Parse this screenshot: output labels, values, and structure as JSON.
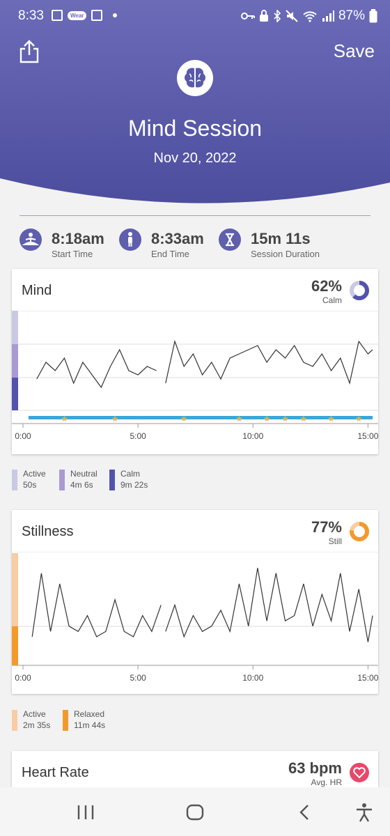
{
  "status_bar": {
    "time": "8:33",
    "wear_badge": "Wear",
    "battery": "87%",
    "icons": [
      "image-icon",
      "wear-os-icon",
      "news-icon",
      "dot-icon",
      "key-icon",
      "lock-icon",
      "bluetooth-icon",
      "mute-icon",
      "wifi-icon",
      "signal-icon",
      "battery-icon"
    ]
  },
  "header": {
    "save_label": "Save",
    "title": "Mind Session",
    "date": "Nov 20, 2022",
    "gradient_top": "#6b6bb8",
    "gradient_bottom": "#4f4fa0"
  },
  "stats": [
    {
      "value": "8:18am",
      "label": "Start Time",
      "icon": "meditation-icon"
    },
    {
      "value": "8:33am",
      "label": "End Time",
      "icon": "person-icon"
    },
    {
      "value": "15m 11s",
      "label": "Session Duration",
      "icon": "hourglass-icon"
    }
  ],
  "mind": {
    "title": "Mind",
    "percent": "62%",
    "percent_value": 62,
    "sub": "Calm",
    "legend": [
      {
        "name": "Active",
        "value": "50s",
        "color": "#c9c9e6"
      },
      {
        "name": "Neutral",
        "value": "4m 6s",
        "color": "#a99ad2"
      },
      {
        "name": "Calm",
        "value": "9m 22s",
        "color": "#5353ad"
      }
    ]
  },
  "stillness": {
    "title": "Stillness",
    "percent": "77%",
    "percent_value": 77,
    "sub": "Still",
    "legend": [
      {
        "name": "Active",
        "value": "2m 35s",
        "color": "#f8cca4"
      },
      {
        "name": "Relaxed",
        "value": "11m 44s",
        "color": "#f39a2b"
      }
    ]
  },
  "heart": {
    "title": "Heart Rate",
    "value": "63 bpm",
    "sub": "Avg. HR",
    "accent": "#e8486b"
  },
  "chart_data": [
    {
      "type": "line",
      "name": "mind",
      "x_ticks": [
        "0:00",
        "5:00",
        "10:00",
        "15:00"
      ],
      "xlim": [
        0,
        15.2
      ],
      "segments": [
        {
          "x": [
            0.6,
            1.0,
            1.4,
            1.8,
            2.2,
            2.6,
            3.0,
            3.4,
            3.8,
            4.2,
            4.6,
            5.0,
            5.4,
            5.8
          ],
          "y": [
            0.35,
            0.55,
            0.45,
            0.6,
            0.3,
            0.55,
            0.4,
            0.25,
            0.5,
            0.7,
            0.45,
            0.4,
            0.5,
            0.45
          ]
        },
        {
          "x": [
            6.2,
            6.6,
            7.0,
            7.4,
            7.8,
            8.2,
            8.6,
            9.0,
            9.4,
            9.8,
            10.2,
            10.6,
            11.0,
            11.4,
            11.8,
            12.2,
            12.6,
            13.0,
            13.4,
            13.8,
            14.2,
            14.6,
            15.0,
            15.2
          ],
          "y": [
            0.3,
            0.8,
            0.5,
            0.65,
            0.4,
            0.55,
            0.35,
            0.6,
            0.65,
            0.7,
            0.75,
            0.55,
            0.7,
            0.6,
            0.75,
            0.55,
            0.5,
            0.65,
            0.45,
            0.6,
            0.3,
            0.8,
            0.65,
            0.7
          ]
        }
      ],
      "markers_x": [
        1.8,
        4.0,
        7.0,
        9.4,
        10.6,
        11.4,
        12.2,
        13.4,
        14.6
      ]
    },
    {
      "type": "line",
      "name": "stillness",
      "x_ticks": [
        "0:00",
        "5:00",
        "10:00",
        "15:00"
      ],
      "xlim": [
        0,
        15.2
      ],
      "segments": [
        {
          "x": [
            0.4,
            0.8,
            1.2,
            1.6,
            2.0,
            2.4,
            2.8,
            3.2,
            3.6,
            4.0,
            4.4,
            4.8,
            5.2,
            5.6,
            6.0
          ],
          "y": [
            0.25,
            0.85,
            0.3,
            0.75,
            0.35,
            0.3,
            0.45,
            0.25,
            0.3,
            0.6,
            0.3,
            0.25,
            0.45,
            0.3,
            0.55
          ]
        },
        {
          "x": [
            6.2,
            6.6,
            7.0,
            7.4,
            7.8,
            8.2,
            8.6,
            9.0,
            9.4,
            9.8,
            10.2,
            10.6,
            11.0,
            11.4,
            11.8,
            12.2,
            12.6,
            13.0,
            13.4,
            13.8,
            14.2,
            14.6,
            15.0,
            15.2
          ],
          "y": [
            0.3,
            0.55,
            0.25,
            0.45,
            0.3,
            0.35,
            0.5,
            0.3,
            0.75,
            0.35,
            0.9,
            0.4,
            0.85,
            0.4,
            0.45,
            0.75,
            0.35,
            0.65,
            0.4,
            0.85,
            0.3,
            0.7,
            0.2,
            0.45
          ]
        }
      ]
    }
  ]
}
